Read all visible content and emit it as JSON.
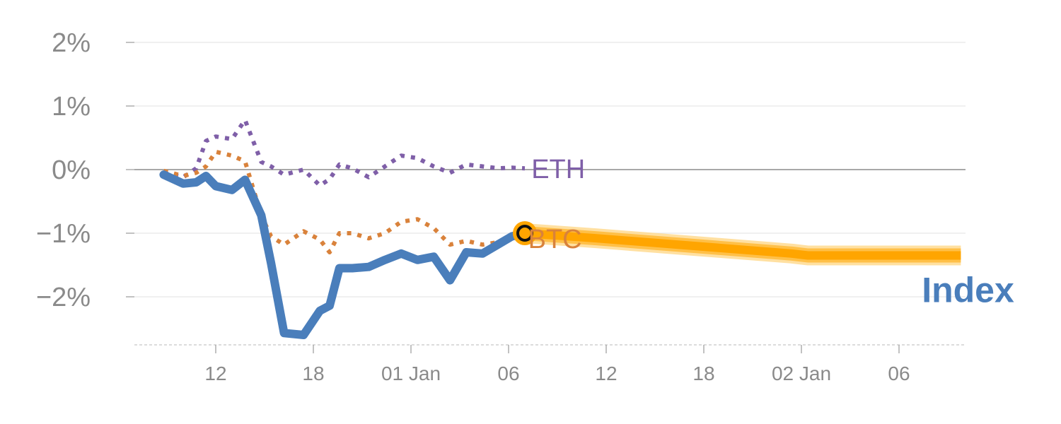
{
  "chart_data": {
    "type": "line",
    "title": "",
    "xlabel": "",
    "ylabel": "",
    "y_unit": "%",
    "ylim": [
      -2.75,
      2.2
    ],
    "y_ticks": [
      {
        "value": 2,
        "label": "2%"
      },
      {
        "value": 1,
        "label": "1%"
      },
      {
        "value": 0,
        "label": "0%"
      },
      {
        "value": -1,
        "label": "−1%"
      },
      {
        "value": -2,
        "label": "−2%"
      }
    ],
    "x_domain": [
      7,
      33
    ],
    "x_ticks": [
      {
        "value": 9.3,
        "label": "12"
      },
      {
        "value": 12.3,
        "label": "18"
      },
      {
        "value": 15.3,
        "label": "01 Jan"
      },
      {
        "value": 18.3,
        "label": "06"
      },
      {
        "value": 21.3,
        "label": "12"
      },
      {
        "value": 24.3,
        "label": "18"
      },
      {
        "value": 27.3,
        "label": "02 Jan"
      },
      {
        "value": 30.3,
        "label": "06"
      }
    ],
    "grid": true,
    "zero_line": true,
    "colors": {
      "index": "#4a7ebb",
      "btc": "#d9823b",
      "eth": "#7f5fa8",
      "forecast": "#ffa500",
      "forecast_band": "#ffd88a",
      "marker_ring": "#ffa500",
      "marker_core": "#111111",
      "grid": "#e6e6e6",
      "zero": "#8c8c8c",
      "tick": "#8a8a8a"
    },
    "series": [
      {
        "name": "Index",
        "role": "index",
        "style": "solid",
        "x": [
          7.7,
          8.3,
          8.7,
          9.0,
          9.3,
          9.8,
          10.2,
          10.7,
          11.0,
          11.4,
          12.0,
          12.5,
          12.8,
          13.1,
          13.5,
          14.0,
          14.5,
          15.0,
          15.5,
          16.0,
          16.5,
          17.0,
          17.5,
          18.0,
          18.4,
          18.8
        ],
        "y": [
          -0.08,
          -0.22,
          -0.2,
          -0.1,
          -0.26,
          -0.32,
          -0.16,
          -0.72,
          -1.47,
          -2.57,
          -2.6,
          -2.22,
          -2.14,
          -1.55,
          -1.55,
          -1.53,
          -1.42,
          -1.32,
          -1.42,
          -1.37,
          -1.74,
          -1.3,
          -1.32,
          -1.17,
          -1.05,
          -1.0
        ]
      },
      {
        "name": "BTC",
        "role": "btc",
        "style": "dotted",
        "x": [
          7.7,
          8.3,
          8.7,
          9.0,
          9.3,
          9.8,
          10.2,
          10.7,
          11.0,
          11.4,
          12.0,
          12.5,
          12.8,
          13.1,
          13.5,
          14.0,
          14.5,
          15.0,
          15.5,
          16.0,
          16.5,
          17.0,
          17.5,
          18.0,
          18.4,
          18.8
        ],
        "y": [
          -0.02,
          -0.1,
          -0.05,
          0.05,
          0.28,
          0.22,
          0.13,
          -0.72,
          -1.05,
          -1.18,
          -0.97,
          -1.1,
          -1.3,
          -1.0,
          -1.0,
          -1.08,
          -1.0,
          -0.82,
          -0.78,
          -0.92,
          -1.18,
          -1.12,
          -1.18,
          -1.14,
          -1.06,
          -1.0
        ]
      },
      {
        "name": "ETH",
        "role": "eth",
        "style": "dotted",
        "x": [
          7.7,
          8.3,
          8.7,
          9.0,
          9.3,
          9.8,
          10.2,
          10.7,
          11.0,
          11.4,
          12.0,
          12.5,
          12.8,
          13.1,
          13.5,
          14.0,
          14.5,
          15.0,
          15.5,
          16.0,
          16.5,
          17.0,
          17.5,
          18.0,
          18.4,
          18.8
        ],
        "y": [
          -0.05,
          -0.12,
          0.02,
          0.45,
          0.52,
          0.48,
          0.78,
          0.12,
          0.05,
          -0.08,
          0.0,
          -0.25,
          -0.15,
          0.08,
          0.02,
          -0.12,
          0.05,
          0.22,
          0.18,
          0.05,
          -0.05,
          0.08,
          0.05,
          0.02,
          0.03,
          0.02
        ]
      },
      {
        "name": "Index forecast",
        "role": "forecast",
        "style": "band",
        "x": [
          18.8,
          21.0,
          24.0,
          27.0,
          27.5,
          30.3,
          32.2
        ],
        "y": [
          -1.0,
          -1.08,
          -1.2,
          -1.32,
          -1.35,
          -1.35,
          -1.35
        ]
      }
    ],
    "series_labels": [
      {
        "text": "ETH",
        "role": "eth",
        "x": 19.0,
        "y": 0.0
      },
      {
        "text": "BTC",
        "role": "btc",
        "x": 18.9,
        "y": -1.1
      },
      {
        "text": "Index",
        "role": "index",
        "x": 31.0,
        "y": -1.95
      }
    ],
    "marker": {
      "x": 18.8,
      "y": -1.0
    }
  }
}
